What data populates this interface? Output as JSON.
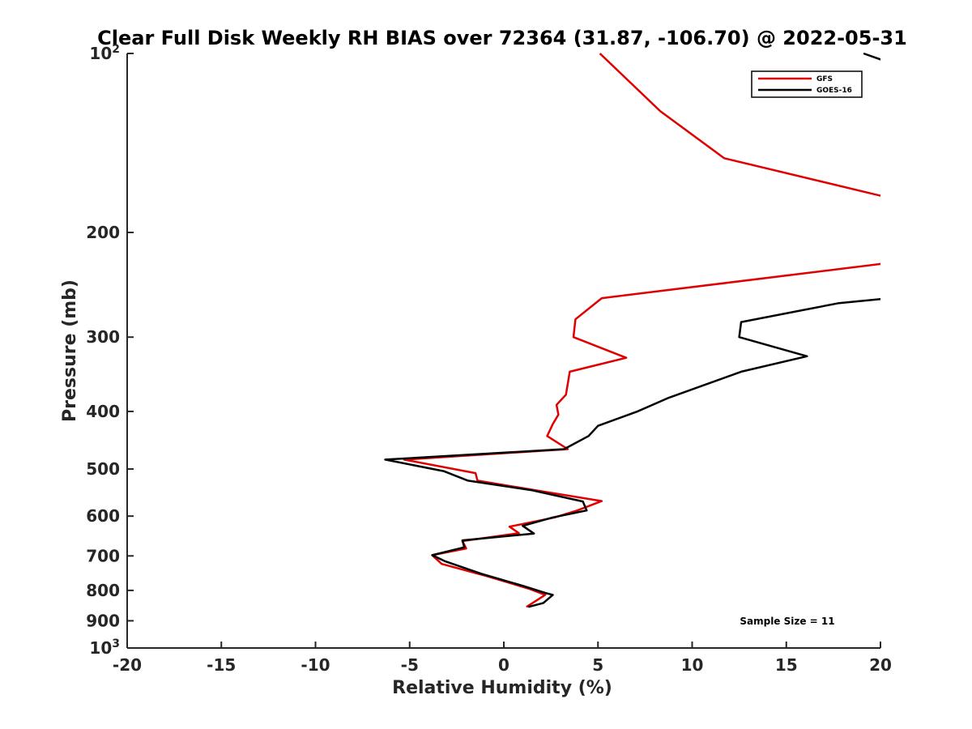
{
  "chart_data": {
    "type": "line",
    "title": "Clear Full Disk Weekly RH BIAS over 72364 (31.87, -106.70) @ 2022-05-31",
    "xlabel": "Relative Humidity (%)",
    "ylabel": "Pressure (mb)",
    "xlim": [
      -20,
      20
    ],
    "ylim": [
      100,
      1000
    ],
    "y_scale": "log",
    "y_reversed": true,
    "x_ticks": [
      "-20",
      "-15",
      "-10",
      "-5",
      "0",
      "5",
      "10",
      "15",
      "20"
    ],
    "y_ticks": [
      {
        "value": 100,
        "base": "10",
        "exp": "2"
      },
      {
        "value": 200,
        "label": "200"
      },
      {
        "value": 300,
        "label": "300"
      },
      {
        "value": 400,
        "label": "400"
      },
      {
        "value": 500,
        "label": "500"
      },
      {
        "value": 600,
        "label": "600"
      },
      {
        "value": 700,
        "label": "700"
      },
      {
        "value": 800,
        "label": "800"
      },
      {
        "value": 900,
        "label": "900"
      },
      {
        "value": 1000,
        "base": "10",
        "exp": "3"
      }
    ],
    "legend_position": "top-right",
    "annotation": "Sample Size = 11",
    "series": [
      {
        "name": "GFS",
        "color": "#e00000",
        "points": [
          [
            5.1,
            100
          ],
          [
            8.3,
            125
          ],
          [
            11.7,
            150
          ],
          [
            20.5,
            175
          ],
          [
            null,
            null
          ],
          [
            20.5,
            225
          ],
          [
            5.2,
            258
          ],
          [
            3.8,
            280
          ],
          [
            3.7,
            300
          ],
          [
            6.5,
            325
          ],
          [
            3.5,
            343
          ],
          [
            3.3,
            375
          ],
          [
            2.8,
            390
          ],
          [
            2.9,
            405
          ],
          [
            2.6,
            420
          ],
          [
            2.3,
            440
          ],
          [
            3.4,
            463
          ],
          [
            -5.3,
            482
          ],
          [
            -1.5,
            508
          ],
          [
            -1.4,
            523
          ],
          [
            2.0,
            545
          ],
          [
            5.2,
            566
          ],
          [
            3.9,
            587
          ],
          [
            2.7,
            603
          ],
          [
            0.3,
            625
          ],
          [
            0.8,
            641
          ],
          [
            -2.2,
            661
          ],
          [
            -2.0,
            680
          ],
          [
            -3.8,
            698
          ],
          [
            -3.3,
            722
          ],
          [
            -0.9,
            757
          ],
          [
            1.4,
            796
          ],
          [
            2.2,
            814
          ],
          [
            1.2,
            853
          ]
        ]
      },
      {
        "name": "GOES-16",
        "color": "#000000",
        "points": [
          [
            19.1,
            100
          ],
          [
            21.0,
            105
          ],
          [
            null,
            null
          ],
          [
            20.5,
            258
          ],
          [
            17.8,
            263
          ],
          [
            12.6,
            283
          ],
          [
            12.5,
            300
          ],
          [
            16.1,
            323
          ],
          [
            12.6,
            343
          ],
          [
            8.7,
            380
          ],
          [
            7.1,
            400
          ],
          [
            5.0,
            423
          ],
          [
            4.5,
            440
          ],
          [
            3.2,
            463
          ],
          [
            -6.3,
            482
          ],
          [
            -3.2,
            504
          ],
          [
            -1.9,
            523
          ],
          [
            1.5,
            543
          ],
          [
            4.2,
            567
          ],
          [
            4.4,
            587
          ],
          [
            2.6,
            603
          ],
          [
            1.0,
            623
          ],
          [
            1.6,
            642
          ],
          [
            -2.2,
            659
          ],
          [
            -2.1,
            677
          ],
          [
            -3.8,
            698
          ],
          [
            -3.1,
            715
          ],
          [
            -1.2,
            750
          ],
          [
            1.0,
            786
          ],
          [
            2.2,
            808
          ],
          [
            2.6,
            814
          ],
          [
            2.1,
            840
          ],
          [
            1.3,
            853
          ]
        ]
      }
    ]
  }
}
